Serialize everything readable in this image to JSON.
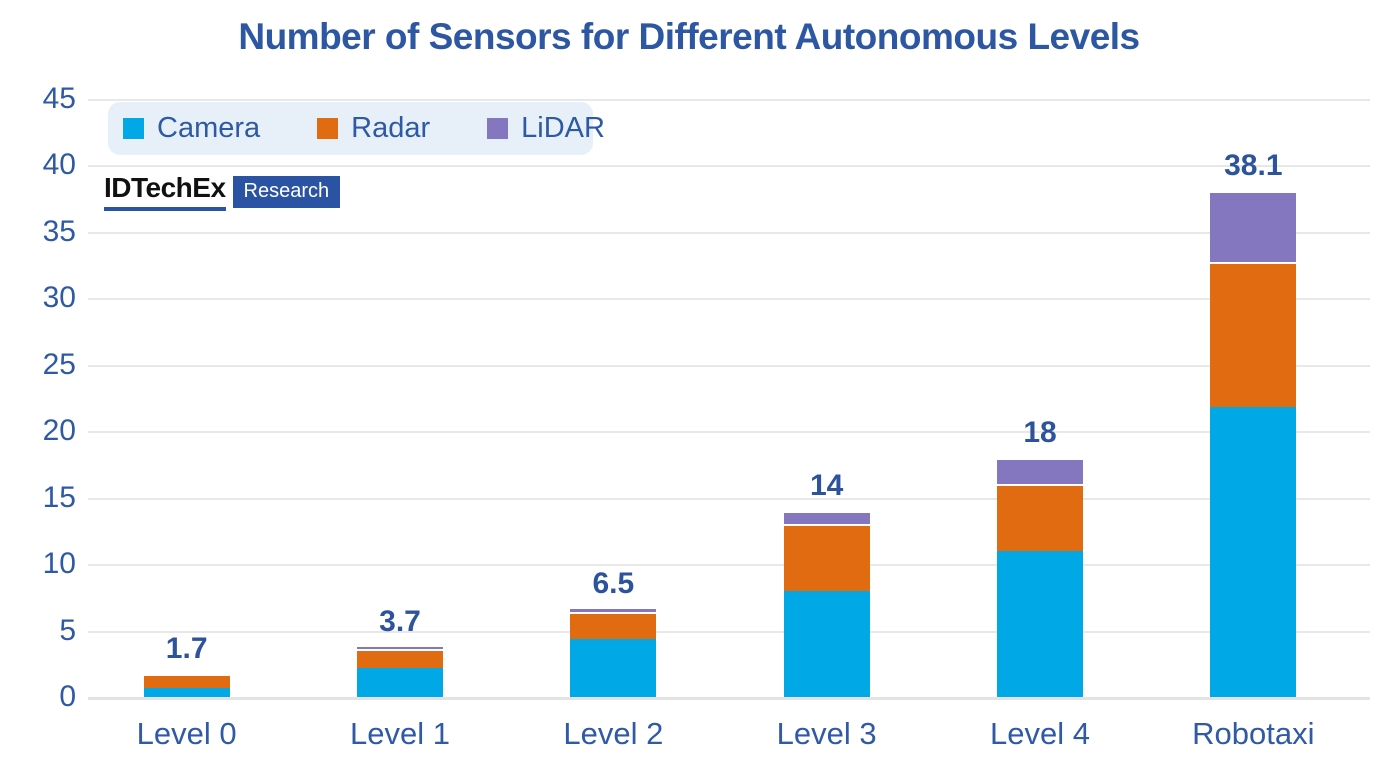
{
  "title": "Number of Sensors for Different Autonomous Levels",
  "branding": {
    "logo_text": "IDTechEx",
    "logo_suffix": "Research"
  },
  "legend": {
    "entries": [
      "Camera",
      "Radar",
      "LiDAR"
    ]
  },
  "colors": {
    "camera": "#00A9E5",
    "radar": "#E06B10",
    "lidar": "#8476BF",
    "text_blue": "#2E59A4",
    "legend_bg": "#E7F0F8",
    "gridline": "#E8E8E8",
    "logo_blue": "#2B53A3"
  },
  "chart_data": {
    "type": "bar",
    "stacked": true,
    "title": "Number of Sensors for Different Autonomous Levels",
    "categories": [
      "Level 0",
      "Level 1",
      "Level 2",
      "Level 3",
      "Level 4",
      "Robotaxi"
    ],
    "series": [
      {
        "name": "Camera",
        "color": "#00A9E5",
        "values": [
          0.7,
          2.2,
          4.4,
          8,
          11,
          21.8
        ]
      },
      {
        "name": "Radar",
        "color": "#E06B10",
        "values": [
          1.0,
          1.4,
          2.0,
          5,
          5,
          10.9
        ]
      },
      {
        "name": "LiDAR",
        "color": "#8476BF",
        "values": [
          0,
          0.1,
          0.1,
          1,
          2,
          5.4
        ]
      }
    ],
    "totals": [
      "1.7",
      "3.7",
      "6.5",
      "14",
      "18",
      "38.1"
    ],
    "xlabel": "",
    "ylabel": "",
    "ylim": [
      0,
      45
    ],
    "yticks": [
      0,
      5,
      10,
      15,
      20,
      25,
      30,
      35,
      40,
      45
    ],
    "grid": "horizontal",
    "legend_position": "top-left"
  }
}
